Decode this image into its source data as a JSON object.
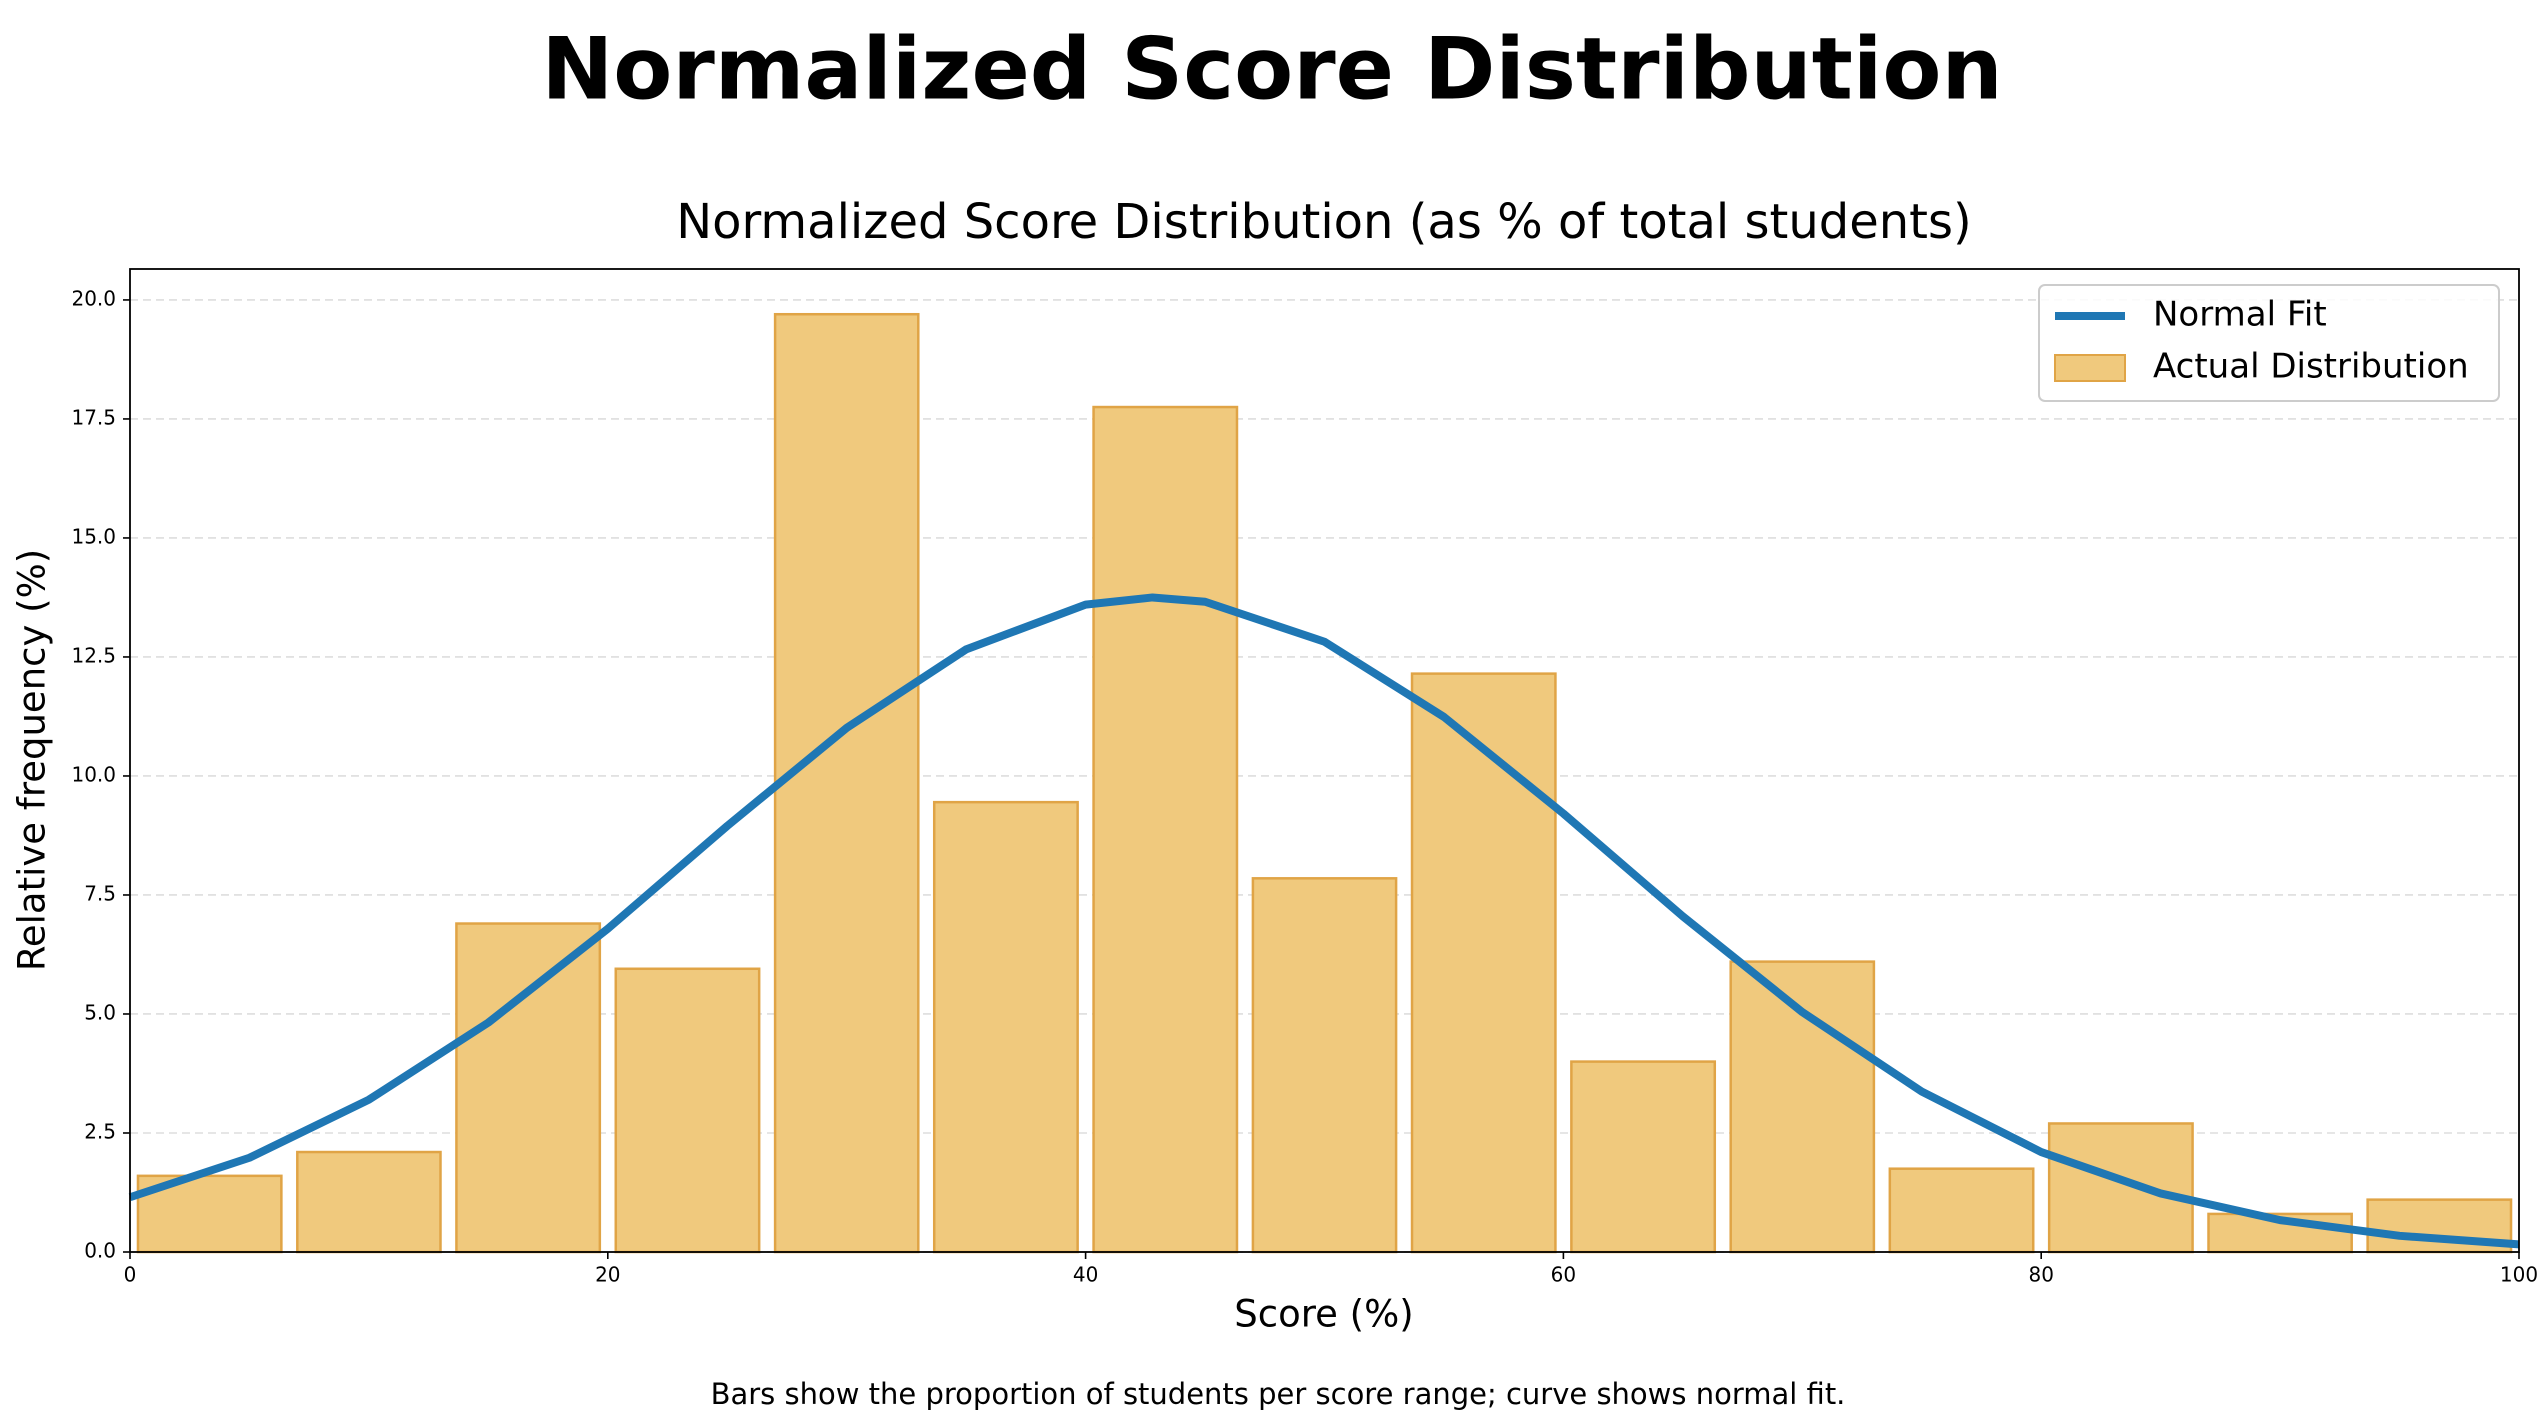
{
  "chart_data": {
    "type": "histogram",
    "title": "Normalized Score Distribution",
    "subtitle": "Normalized Score Distribution (as % of total students)",
    "xlabel": "Score (%)",
    "ylabel": "Relative frequency (%)",
    "caption": "Bars show the proportion of students per score range; curve shows normal fit.",
    "xlim": [
      0,
      100
    ],
    "xticks": [
      0,
      20,
      40,
      60,
      80,
      100
    ],
    "ylim": [
      0,
      20.65
    ],
    "yticks": [
      {
        "value": 0,
        "label": "0.0"
      },
      {
        "value": 2.5,
        "label": "2.5"
      },
      {
        "value": 5,
        "label": "5.0"
      },
      {
        "value": 7.5,
        "label": "7.5"
      },
      {
        "value": 10,
        "label": "10.0"
      },
      {
        "value": 12.5,
        "label": "12.5"
      },
      {
        "value": 15,
        "label": "15.0"
      },
      {
        "value": 17.5,
        "label": "17.5"
      },
      {
        "value": 20,
        "label": "20.0"
      }
    ],
    "grid": "y",
    "legend": "upper right",
    "series": [
      {
        "name": "Normal Fit",
        "type": "line",
        "color": "#1f77b4",
        "x": [
          0,
          5,
          10,
          15,
          20,
          25,
          30,
          35,
          40,
          42.8,
          45,
          50,
          55,
          60,
          65,
          70,
          75,
          80,
          85,
          90,
          95,
          100
        ],
        "values": [
          1.15,
          1.98,
          3.2,
          4.82,
          6.79,
          8.95,
          11.01,
          12.66,
          13.6,
          13.75,
          13.66,
          12.82,
          11.24,
          9.21,
          7.05,
          5.04,
          3.37,
          2.1,
          1.23,
          0.67,
          0.34,
          0.16
        ]
      },
      {
        "name": "Actual Distribution",
        "type": "histogram",
        "color": "#f0c97d",
        "edgecolor": "#e0a446",
        "bins": [
          0,
          6.67,
          13.33,
          20,
          26.67,
          33.33,
          40,
          46.67,
          53.33,
          60,
          66.67,
          73.33,
          80,
          86.67,
          93.33,
          100
        ],
        "values": [
          1.6,
          2.1,
          6.9,
          5.95,
          19.7,
          9.45,
          17.75,
          7.85,
          12.15,
          4.0,
          6.1,
          1.75,
          2.7,
          0.8,
          1.1
        ]
      }
    ]
  }
}
